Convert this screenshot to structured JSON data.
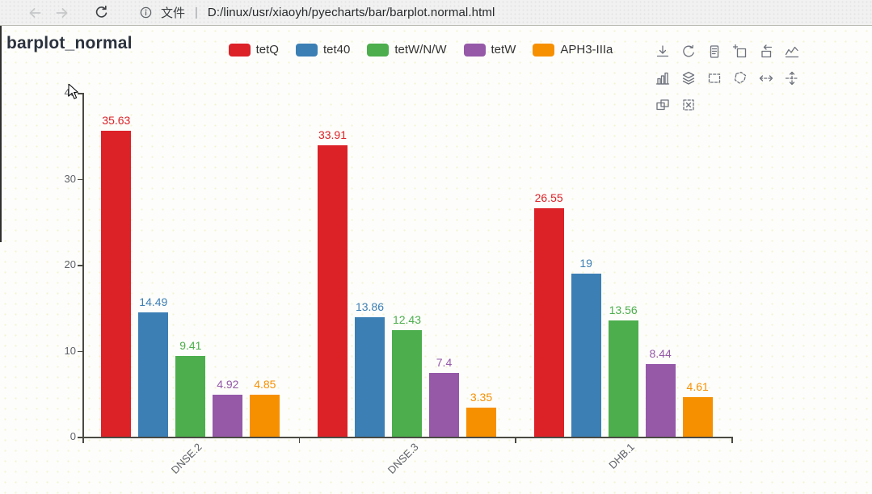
{
  "browser": {
    "file_label": "文件",
    "separator": "|",
    "url": "D:/linux/usr/xiaoyh/pyecharts/bar/barplot.normal.html"
  },
  "chart_data": {
    "type": "bar",
    "title": "barplot_normal",
    "categories": [
      "DNSE.2",
      "DNSE.3",
      "DHB.1"
    ],
    "series": [
      {
        "name": "tetQ",
        "color": "#dc2127",
        "values": [
          35.63,
          33.91,
          26.55
        ]
      },
      {
        "name": "tet40",
        "color": "#3b7fb5",
        "values": [
          14.49,
          13.86,
          19
        ]
      },
      {
        "name": "tetW/N/W",
        "color": "#4cae4c",
        "values": [
          9.41,
          12.43,
          13.56
        ]
      },
      {
        "name": "tetW",
        "color": "#9559a8",
        "values": [
          4.92,
          7.4,
          8.44
        ]
      },
      {
        "name": "APH3-IIIa",
        "color": "#f79000",
        "values": [
          4.85,
          3.35,
          4.61
        ]
      }
    ],
    "ylim": [
      0,
      40
    ],
    "yticks": [
      0,
      10,
      20,
      30,
      40
    ],
    "grid": false,
    "value_labels": true,
    "legend_position": "top-center",
    "x_label_rotation": 45,
    "xlabel": "",
    "ylabel": ""
  },
  "toolbox": {
    "rows": [
      [
        "save-as-image",
        "restore",
        "data-view",
        "data-zoom",
        "data-zoom-reset",
        "magic-type-line"
      ],
      [
        "magic-type-bar",
        "magic-type-stack",
        "brush-rect",
        "brush-polygon",
        "brush-linex",
        "brush-liney"
      ],
      [
        "brush-keep",
        "brush-clear"
      ]
    ]
  },
  "colors": {
    "axis": "#4a4a43",
    "tick_label": "#5e6166",
    "title": "#2b323e",
    "legend_text": "#333333",
    "toolbox_icon": "#6d717b"
  }
}
